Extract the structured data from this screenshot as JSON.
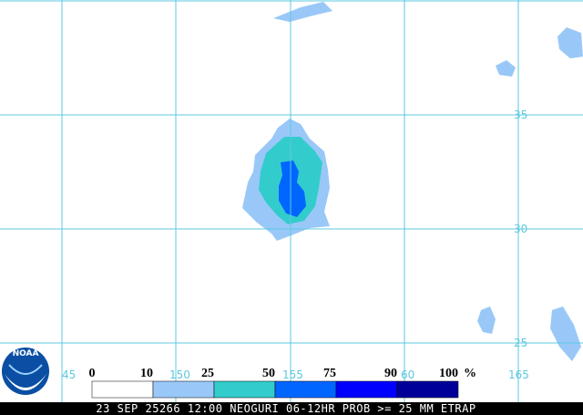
{
  "map": {
    "logo": "NOAA",
    "latitude_labels": [
      35,
      30,
      25
    ],
    "longitude_labels": [
      45,
      150,
      155,
      60,
      165
    ],
    "legend": {
      "stops": [
        0,
        10,
        25,
        50,
        75,
        90,
        100
      ],
      "unit": "%",
      "colors": [
        "#ffffff",
        "#99c8f8",
        "#33cccc",
        "#0066ff",
        "#0000ff",
        "#000099"
      ]
    },
    "footer": "23 SEP 25266 12:00 NEOGURI 06-12HR PROB >= 25 MM ETRAP"
  }
}
